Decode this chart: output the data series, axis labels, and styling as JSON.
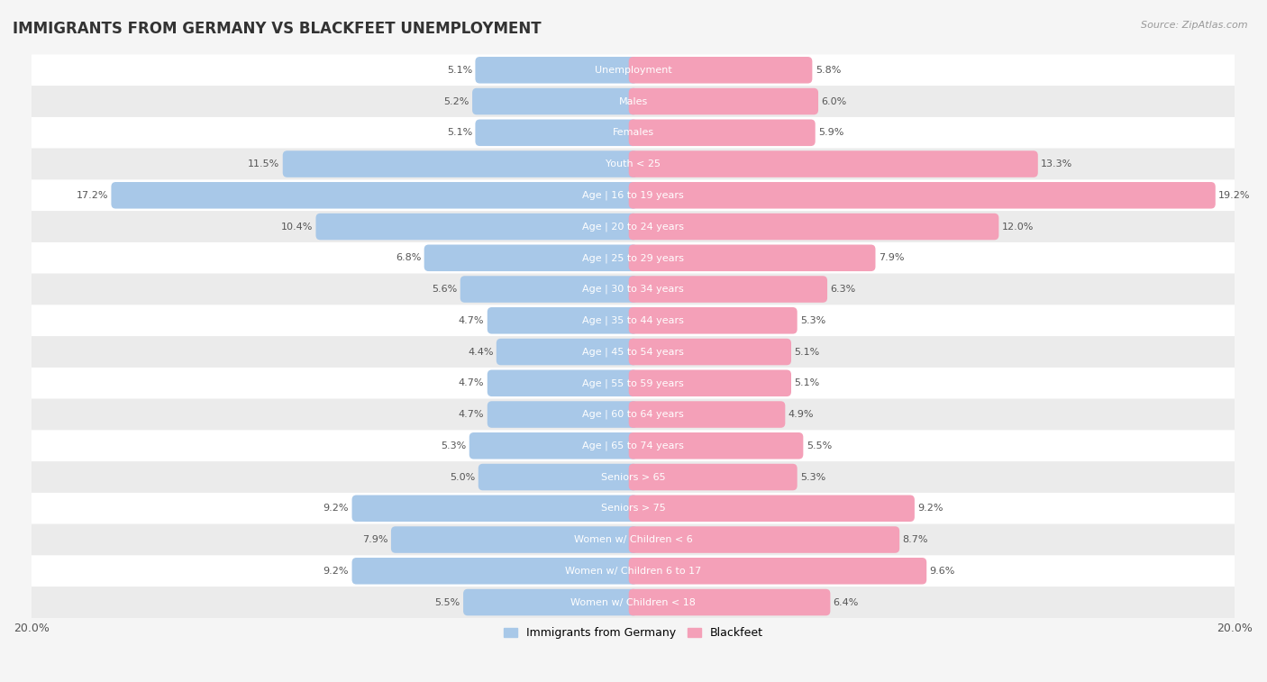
{
  "title": "IMMIGRANTS FROM GERMANY VS BLACKFEET UNEMPLOYMENT",
  "source": "Source: ZipAtlas.com",
  "categories": [
    "Unemployment",
    "Males",
    "Females",
    "Youth < 25",
    "Age | 16 to 19 years",
    "Age | 20 to 24 years",
    "Age | 25 to 29 years",
    "Age | 30 to 34 years",
    "Age | 35 to 44 years",
    "Age | 45 to 54 years",
    "Age | 55 to 59 years",
    "Age | 60 to 64 years",
    "Age | 65 to 74 years",
    "Seniors > 65",
    "Seniors > 75",
    "Women w/ Children < 6",
    "Women w/ Children 6 to 17",
    "Women w/ Children < 18"
  ],
  "germany_values": [
    5.1,
    5.2,
    5.1,
    11.5,
    17.2,
    10.4,
    6.8,
    5.6,
    4.7,
    4.4,
    4.7,
    4.7,
    5.3,
    5.0,
    9.2,
    7.9,
    9.2,
    5.5
  ],
  "blackfeet_values": [
    5.8,
    6.0,
    5.9,
    13.3,
    19.2,
    12.0,
    7.9,
    6.3,
    5.3,
    5.1,
    5.1,
    4.9,
    5.5,
    5.3,
    9.2,
    8.7,
    9.6,
    6.4
  ],
  "germany_color": "#a8c8e8",
  "blackfeet_color": "#f4a0b8",
  "germany_label": "Immigrants from Germany",
  "blackfeet_label": "Blackfeet",
  "xlim": 20.0,
  "bar_height": 0.55,
  "background_color": "#f5f5f5",
  "row_color_light": "#ffffff",
  "row_color_dark": "#ebebeb",
  "title_fontsize": 12,
  "label_fontsize": 8.0,
  "value_fontsize": 8.0,
  "legend_fontsize": 9,
  "center_label_color": "#555555",
  "value_label_color": "#555555"
}
